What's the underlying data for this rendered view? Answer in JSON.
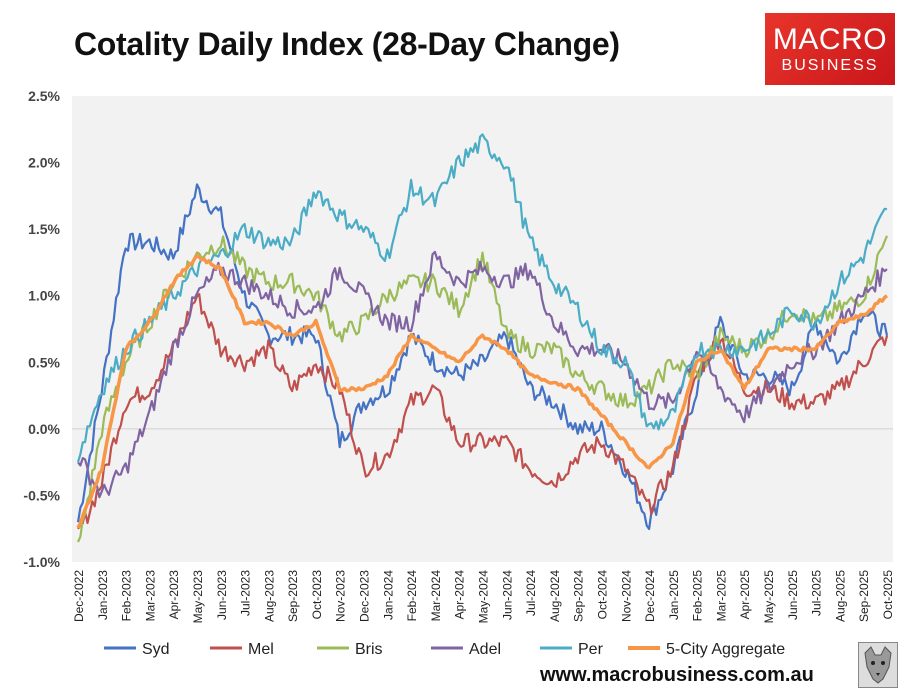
{
  "title": "Cotality Daily Index (28-Day Change)",
  "logo": {
    "line1": "MACRO",
    "line2": "BUSINESS",
    "color": "#e2231a"
  },
  "footer_url": "www.macrobusiness.com.au",
  "chart_data": {
    "type": "line",
    "title": "Cotality Daily Index (28-Day Change)",
    "ylim": [
      -1.0,
      2.5
    ],
    "yticks": [
      "2.5%",
      "2.0%",
      "1.5%",
      "1.0%",
      "0.5%",
      "0.0%",
      "-0.5%",
      "-1.0%"
    ],
    "ytick_values": [
      2.5,
      2.0,
      1.5,
      1.0,
      0.5,
      0.0,
      -0.5,
      -1.0
    ],
    "xticks": [
      "Dec-2022",
      "Jan-2023",
      "Feb-2023",
      "Mar-2023",
      "Apr-2023",
      "May-2023",
      "Jun-2023",
      "Jul-2023",
      "Aug-2023",
      "Sep-2023",
      "Oct-2023",
      "Nov-2023",
      "Dec-2023",
      "Jan-2024",
      "Feb-2024",
      "Mar-2024",
      "Apr-2024",
      "May-2024",
      "Jun-2024",
      "Jul-2024",
      "Aug-2024",
      "Sep-2024",
      "Oct-2024",
      "Nov-2024",
      "Dec-2024",
      "Jan-2025",
      "Feb-2025",
      "Mar-2025",
      "Apr-2025",
      "May-2025",
      "Jun-2025",
      "Jul-2025",
      "Aug-2025",
      "Sep-2025",
      "Oct-2025"
    ],
    "legend_position": "bottom",
    "background": "#f2f2f2",
    "series": [
      {
        "name": "Syd",
        "color": "#4472c4",
        "values": [
          -0.7,
          0.3,
          1.4,
          1.4,
          1.3,
          1.8,
          1.6,
          1.0,
          0.7,
          0.7,
          0.7,
          -0.1,
          0.2,
          0.3,
          0.7,
          0.5,
          0.4,
          0.5,
          0.7,
          0.3,
          0.2,
          0.0,
          0.0,
          -0.3,
          -0.7,
          -0.3,
          0.3,
          0.8,
          0.4,
          0.4,
          0.3,
          0.8,
          0.5,
          0.9,
          0.7
        ]
      },
      {
        "name": "Mel",
        "color": "#c0504d",
        "values": [
          -0.8,
          -0.4,
          0.2,
          0.3,
          0.6,
          1.0,
          0.6,
          0.5,
          0.6,
          0.3,
          0.5,
          0.3,
          -0.3,
          -0.2,
          0.2,
          0.3,
          -0.1,
          -0.1,
          -0.1,
          -0.3,
          -0.4,
          -0.2,
          -0.1,
          -0.3,
          -0.6,
          -0.3,
          0.4,
          0.7,
          0.3,
          0.3,
          0.2,
          0.2,
          0.3,
          0.5,
          0.7
        ]
      },
      {
        "name": "Bris",
        "color": "#9bbb59",
        "values": [
          -0.9,
          0.0,
          0.5,
          0.8,
          1.1,
          1.3,
          1.4,
          1.2,
          1.1,
          1.1,
          1.0,
          0.7,
          0.8,
          1.0,
          1.1,
          1.1,
          0.9,
          1.3,
          0.7,
          0.6,
          0.6,
          0.4,
          0.3,
          0.2,
          0.3,
          0.5,
          0.4,
          0.7,
          0.6,
          0.7,
          0.9,
          0.8,
          0.9,
          1.0,
          1.45
        ]
      },
      {
        "name": "Adel",
        "color": "#8064a2",
        "values": [
          -0.2,
          -0.5,
          -0.3,
          0.1,
          0.6,
          1.0,
          1.2,
          1.1,
          1.0,
          0.9,
          0.9,
          1.2,
          1.0,
          0.8,
          0.8,
          1.3,
          1.1,
          1.2,
          1.1,
          1.2,
          0.8,
          0.6,
          0.6,
          0.5,
          0.2,
          0.2,
          0.6,
          0.3,
          0.1,
          0.3,
          0.5,
          0.6,
          0.8,
          1.0,
          1.2
        ]
      },
      {
        "name": "Per",
        "color": "#4bacc6",
        "values": [
          -0.2,
          0.3,
          0.6,
          0.8,
          1.0,
          1.2,
          1.3,
          1.5,
          1.4,
          1.4,
          1.8,
          1.6,
          1.5,
          1.3,
          1.8,
          1.7,
          2.0,
          2.15,
          2.0,
          1.4,
          1.1,
          0.9,
          0.6,
          0.5,
          0.0,
          0.1,
          0.6,
          0.6,
          0.6,
          0.7,
          0.9,
          0.8,
          1.1,
          1.3,
          1.65
        ]
      },
      {
        "name": "5-City Aggregate",
        "color": "#f79646",
        "values": [
          -0.75,
          -0.3,
          0.6,
          0.8,
          1.1,
          1.3,
          1.2,
          0.8,
          0.8,
          0.7,
          0.8,
          0.3,
          0.3,
          0.4,
          0.7,
          0.6,
          0.5,
          0.7,
          0.6,
          0.4,
          0.35,
          0.3,
          0.1,
          -0.1,
          -0.3,
          -0.1,
          0.5,
          0.6,
          0.3,
          0.6,
          0.6,
          0.6,
          0.8,
          0.85,
          1.0
        ]
      }
    ]
  }
}
